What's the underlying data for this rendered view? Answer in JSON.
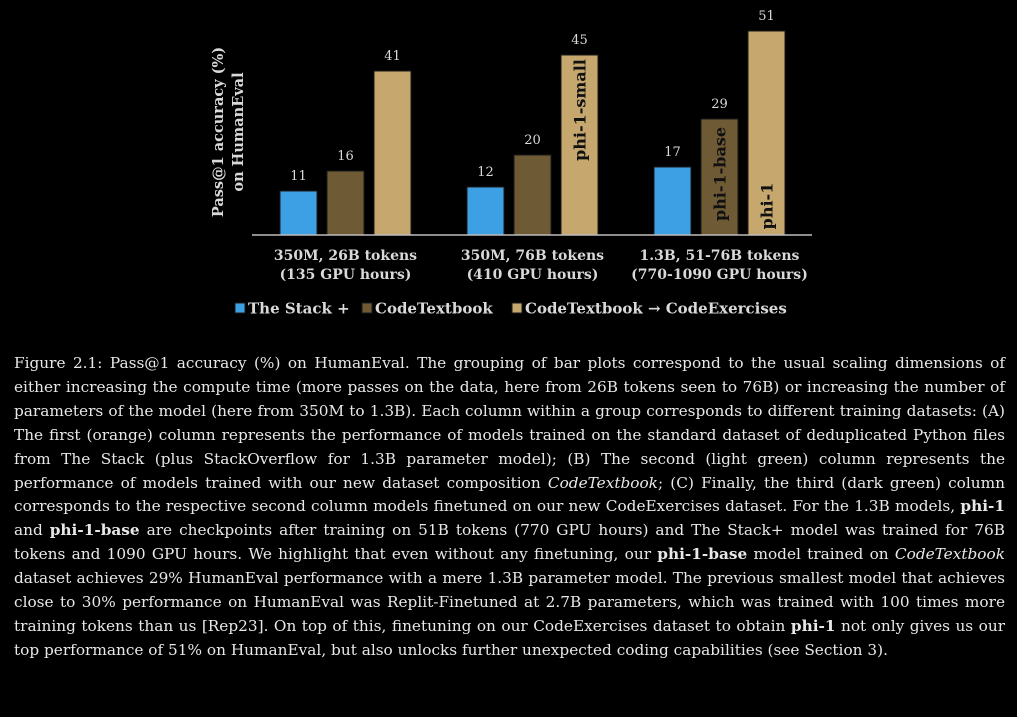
{
  "chart_data": {
    "type": "bar",
    "ylabel": "Pass@1 accuracy (%) on HumanEval",
    "categories": [
      [
        "350M, 26B tokens",
        "(135 GPU hours)"
      ],
      [
        "350M, 76B tokens",
        "(410 GPU hours)"
      ],
      [
        "1.3B, 51-76B tokens",
        "(770-1090 GPU hours)"
      ]
    ],
    "series": [
      {
        "name": "The Stack +",
        "color": "#3ea0e4",
        "values": [
          11,
          12,
          17
        ]
      },
      {
        "name": "CodeTextbook",
        "color": "#6f5a36",
        "values": [
          16,
          20,
          29
        ]
      },
      {
        "name": "CodeTextbook → CodeExercises",
        "color": "#c6a86f",
        "values": [
          41,
          45,
          51
        ]
      }
    ],
    "bar_labels": [
      {
        "series": 1,
        "category": 2,
        "text": "phi-1-base"
      },
      {
        "series": 2,
        "category": 1,
        "text": "phi-1-small"
      },
      {
        "series": 2,
        "category": 2,
        "text": "phi-1"
      }
    ],
    "ylim": [
      0,
      51
    ],
    "grid": false,
    "legend_position": "bottom"
  },
  "caption": {
    "label": "Figure 2.1:",
    "parts": [
      {
        "t": " Pass@1 accuracy (%) on HumanEval.  The grouping of bar plots correspond to the usual scaling dimensions of either increasing the compute time (more passes on the data, here from 26B tokens seen to 76B) or increasing the number of parameters of the model (here from 350M to 1.3B). Each column within a group corresponds to different training datasets: (A) The first (orange) column represents the performance of models trained on the standard dataset of deduplicated Python files from The Stack (plus StackOverflow for 1.3B parameter model); (B) The second (light green) column represents the performance of models trained with our new dataset composition "
      },
      {
        "t": "CodeTextbook",
        "s": "i"
      },
      {
        "t": "; (C) Finally, the third (dark green) column corresponds to the respective second column models finetuned on our new CodeExercises dataset. For the 1.3B models, "
      },
      {
        "t": "phi-1",
        "s": "b"
      },
      {
        "t": " and "
      },
      {
        "t": "phi-1-base",
        "s": "b"
      },
      {
        "t": " are checkpoints after training on 51B tokens (770 GPU hours) and The Stack+ model was trained for 76B tokens and 1090 GPU hours.  We highlight that even without any finetuning, our "
      },
      {
        "t": "phi-1-base",
        "s": "b"
      },
      {
        "t": " model trained on "
      },
      {
        "t": "CodeTextbook",
        "s": "i"
      },
      {
        "t": " dataset achieves 29% HumanEval performance with a mere 1.3B parameter model.  The previous smallest model that achieves close to 30% performance on HumanEval was Replit-Finetuned at 2.7B parameters, which was trained with 100 times more training tokens than us [Rep23]. On top of this, finetuning on our CodeExercises dataset to obtain "
      },
      {
        "t": "phi-1",
        "s": "b"
      },
      {
        "t": " not only gives us our top performance of 51% on HumanEval, but also unlocks further unexpected coding capabilities (see Section 3)."
      }
    ]
  }
}
